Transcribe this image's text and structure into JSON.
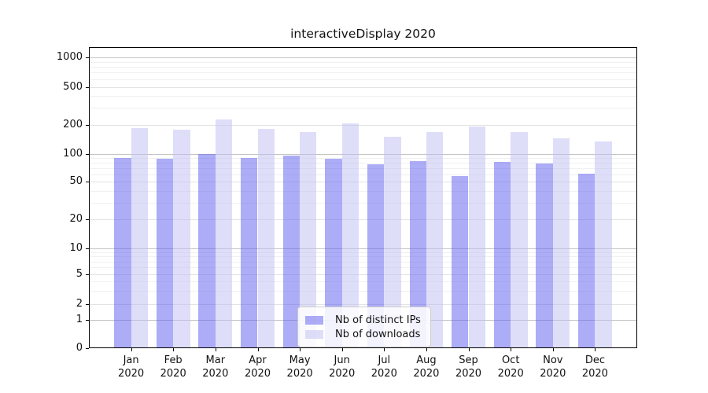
{
  "title": "interactiveDisplay 2020",
  "chart_data": {
    "type": "bar",
    "title": "interactiveDisplay 2020",
    "categories": [
      "Jan 2020",
      "Feb 2020",
      "Mar 2020",
      "Apr 2020",
      "May 2020",
      "Jun 2020",
      "Jul 2020",
      "Aug 2020",
      "Sep 2020",
      "Oct 2020",
      "Nov 2020",
      "Dec 2020"
    ],
    "series": [
      {
        "name": "Nb of distinct IPs",
        "color": "rgba(90,90,240,0.5)",
        "values": [
          90,
          88,
          100,
          90,
          95,
          89,
          77,
          83,
          58,
          82,
          78,
          61
        ]
      },
      {
        "name": "Nb of downloads",
        "color": "rgba(190,190,243,0.5)",
        "values": [
          185,
          177,
          226,
          181,
          168,
          208,
          149,
          167,
          192,
          169,
          145,
          133
        ]
      }
    ],
    "xlabel": "",
    "ylabel": "",
    "ylim": [
      0,
      1000
    ],
    "yscale": "log (1-2-5 ticks, 0 pinned at baseline)",
    "y_ticks": [
      1000,
      500,
      200,
      100,
      50,
      20,
      10,
      5,
      2,
      1,
      0
    ],
    "grid": "horizontal, with log minor lines",
    "legend_position": "lower center"
  },
  "style": {
    "spine_color": "#000000",
    "grid_decade_color": "#c4c4c4",
    "grid_sub_color": "#e2e2e2",
    "grid_minor_color": "#f0f0f0",
    "text_color": "#111111",
    "background": "#ffffff"
  }
}
